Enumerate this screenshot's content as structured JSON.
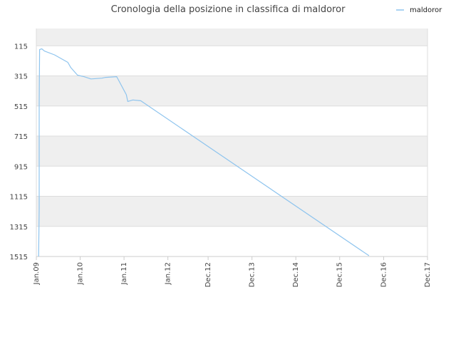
{
  "chart_data": {
    "type": "line",
    "title": "Cronologia della posizione in classifica di maldoror",
    "xlabel": "",
    "ylabel": "",
    "y_inverted": true,
    "y_ticks": [
      "115",
      "315",
      "515",
      "715",
      "915",
      "1115",
      "1315",
      "1515"
    ],
    "y_tick_values": [
      115,
      315,
      515,
      715,
      915,
      1115,
      1315,
      1515
    ],
    "ylim": [
      1515,
      0
    ],
    "x_ticks": [
      "Jan.09",
      "Jan.10",
      "Jan.11",
      "Jan.12",
      "Dec.12",
      "Dec.13",
      "Dec.14",
      "Dec.15",
      "Dec.16",
      "Dec.17"
    ],
    "x_tick_dates": [
      "2009-01-01",
      "2010-01-01",
      "2011-01-01",
      "2012-01-01",
      "2012-12-01",
      "2013-12-01",
      "2014-12-01",
      "2015-12-01",
      "2016-12-01",
      "2017-12-01"
    ],
    "xlim": [
      "2009-01-01",
      "2017-12-01"
    ],
    "grid": true,
    "legend": "top-right",
    "series": [
      {
        "name": "maldoror",
        "color": "#8ec4ee",
        "x": [
          "2009-01-20",
          "2009-01-25",
          "2009-01-25",
          "2009-01-28",
          "2009-02-15",
          "2009-03-10",
          "2009-06-01",
          "2009-09-20",
          "2009-10-15",
          "2009-12-10",
          "2010-02-01",
          "2010-04-01",
          "2010-07-01",
          "2010-08-01",
          "2010-11-01",
          "2011-01-20",
          "2011-02-01",
          "2011-03-15",
          "2011-05-20",
          "2016-08-01"
        ],
        "y": [
          1515,
          1200,
          500,
          140,
          135,
          150,
          175,
          225,
          260,
          310,
          320,
          335,
          330,
          325,
          320,
          440,
          485,
          475,
          480,
          1510
        ]
      }
    ]
  }
}
